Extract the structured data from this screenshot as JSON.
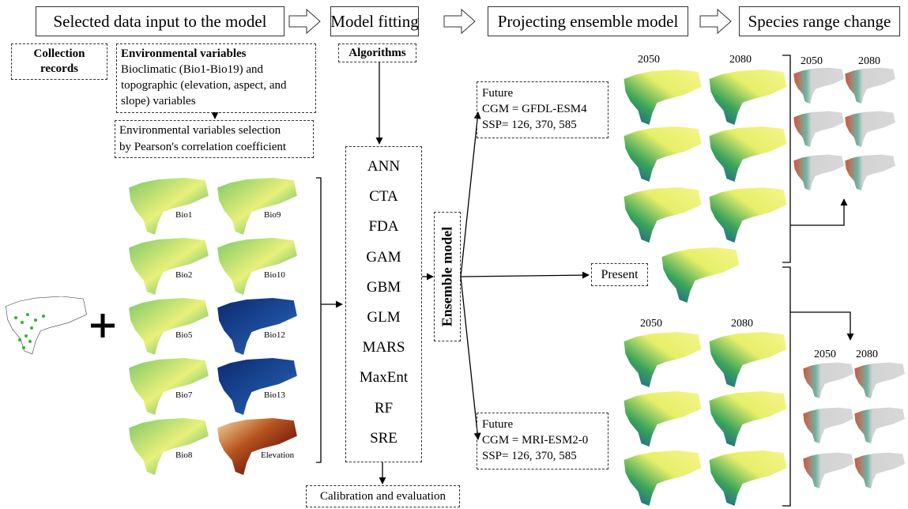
{
  "header": {
    "steps": [
      "Selected data input to the model",
      "Model fitting",
      "Projecting ensemble model",
      "Species range change"
    ]
  },
  "inputs": {
    "collection": [
      "Collection",
      "records"
    ],
    "env_title": "Environmental variables",
    "env_text": [
      "Bioclimatic (Bio1-Bio19) and",
      "topographic (elevation, aspect, and",
      "slope) variables"
    ],
    "selection": [
      "Environmental variables selection",
      "by Pearson's correlation coefficient"
    ],
    "maps": [
      "Bio1",
      "Bio9",
      "Bio2",
      "Bio10",
      "Bio5",
      "Bio12",
      "Bio7",
      "Bio13",
      "Bio8",
      "Elevation"
    ]
  },
  "model": {
    "algorithms_title": "Algorithms",
    "algorithms": [
      "ANN",
      "CTA",
      "FDA",
      "GAM",
      "GBM",
      "GLM",
      "MARS",
      "MaxEnt",
      "RF",
      "SRE"
    ],
    "calibration": "Calibration and evaluation",
    "ensemble": "Ensemble model"
  },
  "projection": {
    "future_1": [
      "Future",
      "CGM = GFDL-ESM4",
      "SSP= 126, 370, 585"
    ],
    "present": "Present",
    "future_2": [
      "Future",
      "CGM = MRI-ESM2-0",
      "SSP= 126, 370, 585"
    ],
    "years_top": [
      "2050",
      "2080"
    ],
    "years_bottom": [
      "2050",
      "2080"
    ]
  },
  "range_change": {
    "years_top": [
      "2050",
      "2080"
    ],
    "years_bottom": [
      "2050",
      "2080"
    ]
  }
}
